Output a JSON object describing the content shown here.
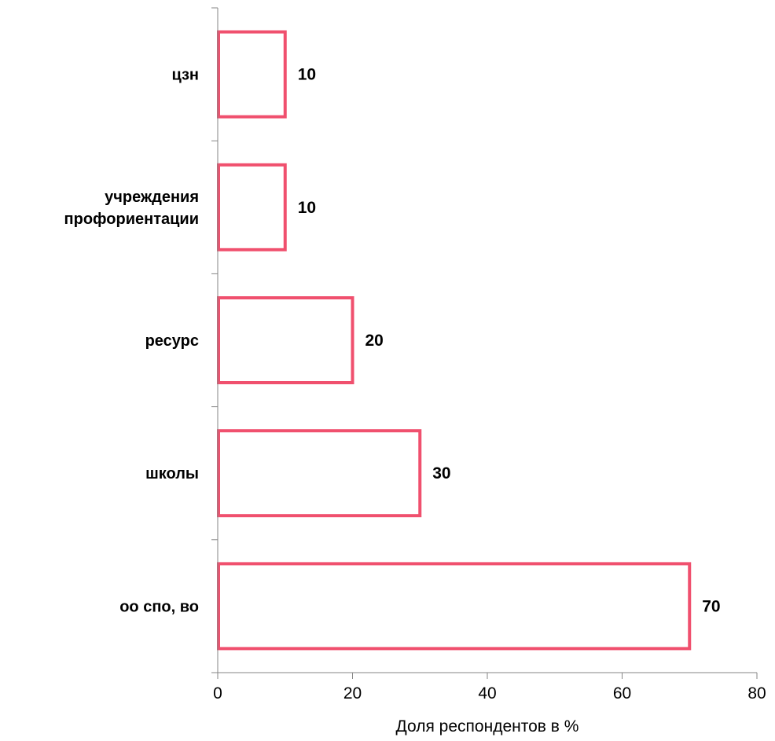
{
  "chart_data": {
    "type": "bar",
    "orientation": "horizontal",
    "categories": [
      "цзн",
      "учреждения профориентации",
      "ресурс",
      "школы",
      "оо спо, во"
    ],
    "category_lines": [
      [
        "цзн"
      ],
      [
        "учреждения",
        "профориентации"
      ],
      [
        "ресурс"
      ],
      [
        "школы"
      ],
      [
        "оо спо, во"
      ]
    ],
    "values": [
      10,
      10,
      20,
      30,
      70
    ],
    "value_labels": [
      "10",
      "10",
      "20",
      "30",
      "70"
    ],
    "xlabel": "Доля респондентов в %",
    "ylabel": "",
    "title": "",
    "xlim": [
      0,
      80
    ],
    "xticks": [
      0,
      20,
      40,
      60,
      80
    ],
    "grid": false,
    "legend": "none",
    "bar_fill": "#ffffff",
    "bar_stroke": "#f0506e"
  }
}
